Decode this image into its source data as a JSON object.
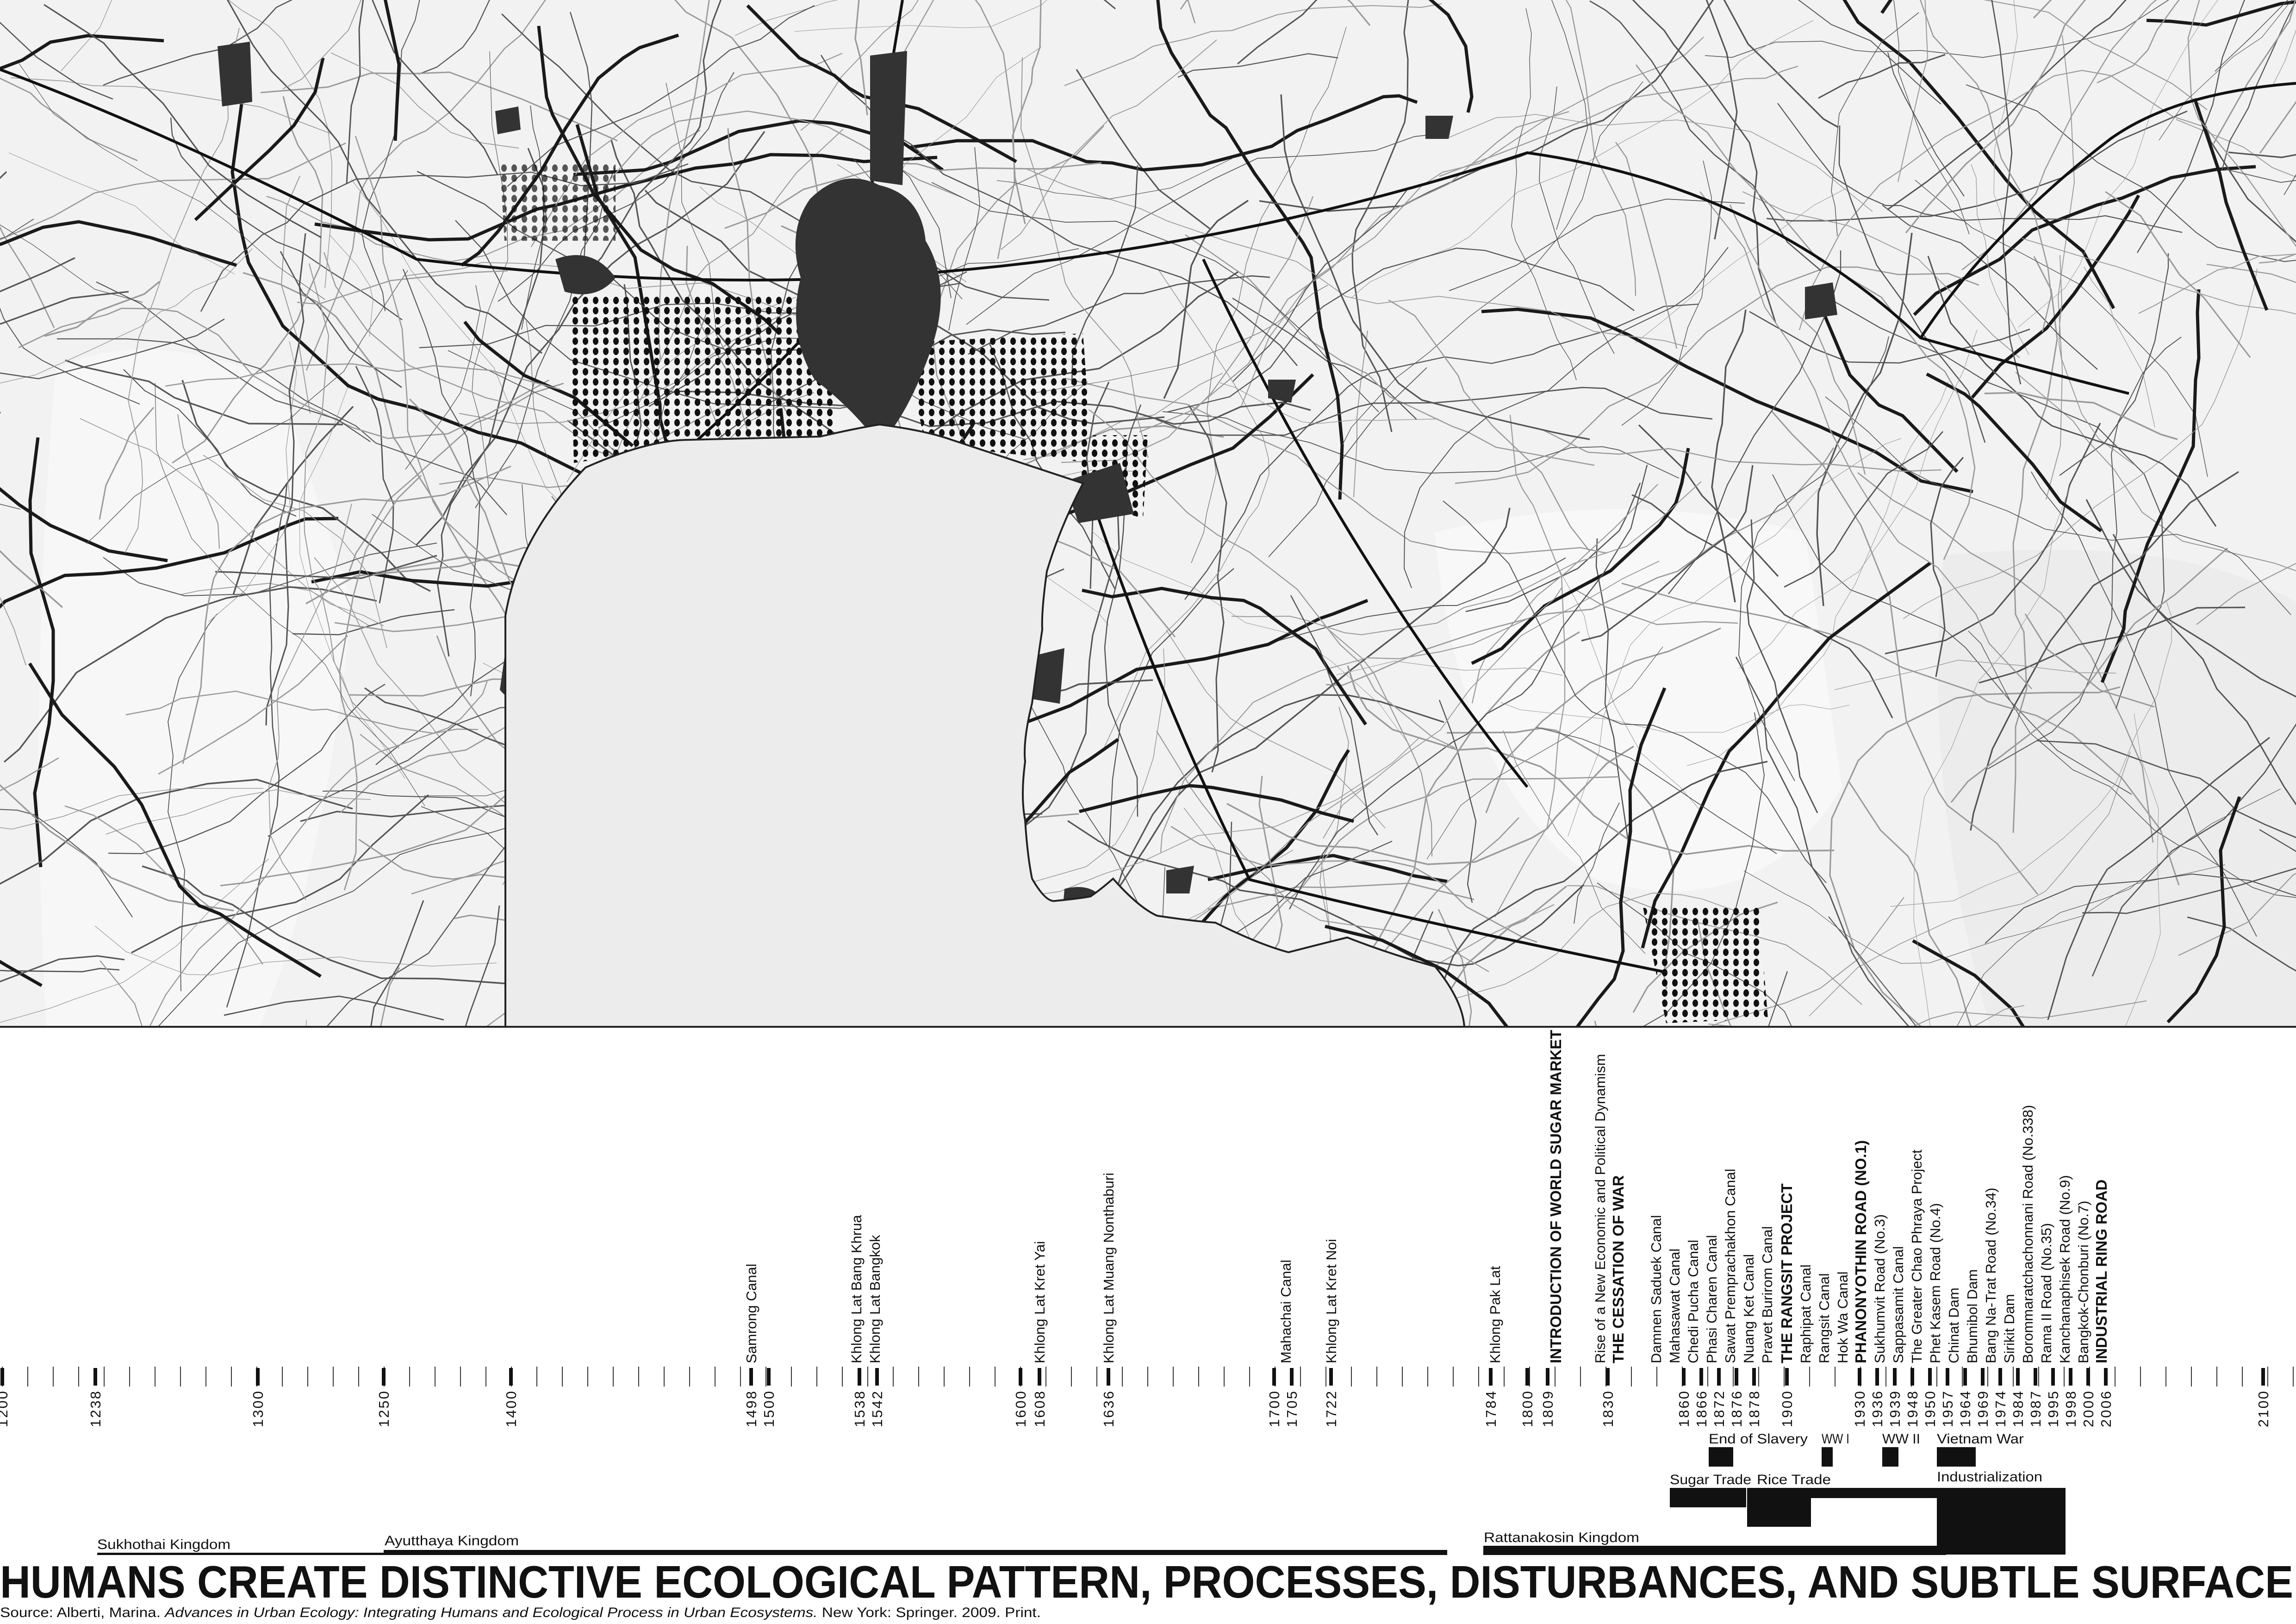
{
  "colors": {
    "sea": "#ececec",
    "land": "#f2f2f2",
    "urban": "#333333",
    "road": "#2a2a2a",
    "ink": "#111111"
  },
  "map": {
    "subject": "Bangkok metropolitan region and Gulf of Thailand, urban land and road network"
  },
  "timeline": {
    "axis_years": [
      "1200",
      "1238",
      "1300",
      "1250",
      "1400",
      "1498",
      "1500",
      "1538",
      "1542",
      "1600",
      "1608",
      "1636",
      "1700",
      "1705",
      "1722",
      "1784",
      "1800",
      "1809",
      "1830",
      "1860",
      "1866",
      "1872",
      "1876",
      "1878",
      "1900",
      "1930",
      "1936",
      "1939",
      "1948",
      "1950",
      "1957",
      "1964",
      "1969",
      "1974",
      "1984",
      "1987",
      "1995",
      "1998",
      "2000",
      "2006",
      "2100"
    ],
    "events": [
      {
        "label": "Samrong Canal",
        "major": false
      },
      {
        "label": "Khlong Lat Bang Khrua",
        "major": false
      },
      {
        "label": "Khlong Lat Bangkok",
        "major": false
      },
      {
        "label": "Khlong Lat Kret Yai",
        "major": false
      },
      {
        "label": "Khlong Lat Muang Nonthaburi",
        "major": false
      },
      {
        "label": "Mahachai Canal",
        "major": false
      },
      {
        "label": "Khlong Lat Kret Noi",
        "major": false
      },
      {
        "label": "Khlong Pak Lat",
        "major": false
      },
      {
        "label": "INTRODUCTION OF WORLD SUGAR MARKET",
        "major": true
      },
      {
        "label": "Rise of a New Economic and Political Dynamism",
        "major": false
      },
      {
        "label": "THE CESSATION OF  WAR",
        "major": true
      },
      {
        "label": "Damnen Saduek Canal",
        "major": false
      },
      {
        "label": "Mahasawat Canal",
        "major": false
      },
      {
        "label": "Chedi Pucha Canal",
        "major": false
      },
      {
        "label": "Phasi Charen Canal",
        "major": false
      },
      {
        "label": "Sawat Premprachakhon Canal",
        "major": false
      },
      {
        "label": "Nuang Ket Canal",
        "major": false
      },
      {
        "label": "Pravet Burirom Canal",
        "major": false
      },
      {
        "label": "THE RANGSIT PROJECT",
        "major": true
      },
      {
        "label": "Raphipat Canal",
        "major": false
      },
      {
        "label": "Rangsit Canal",
        "major": false
      },
      {
        "label": "Hok Wa Canal",
        "major": false
      },
      {
        "label": "PHANONYOTHIN ROAD (NO.1)",
        "major": true
      },
      {
        "label": "Sukhumvit Road (No.3)",
        "major": false
      },
      {
        "label": "Sappasamit Canal",
        "major": false
      },
      {
        "label": "The Greater Chao Phraya Project",
        "major": false
      },
      {
        "label": "Phet Kasem Road (No.4)",
        "major": false
      },
      {
        "label": "Chinat Dam",
        "major": false
      },
      {
        "label": "Bhumibol Dam",
        "major": false
      },
      {
        "label": "Bang Na-Trat Road (No.34)",
        "major": false
      },
      {
        "label": "Sirikit Dam",
        "major": false
      },
      {
        "label": "Borommaratchachonnani Road (No.338)",
        "major": false
      },
      {
        "label": "Rama II Road (No.35)",
        "major": false
      },
      {
        "label": "Kanchanaphisek Road (No.9)",
        "major": false
      },
      {
        "label": "Bangkok-Chonburi (No.7)",
        "major": false
      },
      {
        "label": "INDUSTRIAL RING ROAD",
        "major": true
      }
    ],
    "historic_events": [
      "End of Slavery",
      "WW I",
      "WW II",
      "Vietnam War"
    ],
    "periods": [
      "Sugar Trade",
      "Rice Trade",
      "Industrialization"
    ],
    "kingdoms": [
      "Sukhothai Kingdom",
      "Ayutthaya Kingdom",
      "Rattanakosin Kingdom"
    ]
  },
  "title": "HUMANS CREATE DISTINCTIVE ECOLOGICAL PATTERN, PROCESSES, DISTURBANCES, AND SUBTLE SURFACE",
  "source": {
    "prefix": "Source: Alberti, Marina. ",
    "book": "Advances in Urban Ecology: Integrating Humans and Ecological Process in Urban Ecosystems.",
    "suffix": " New York: Springer. 2009. Print."
  }
}
